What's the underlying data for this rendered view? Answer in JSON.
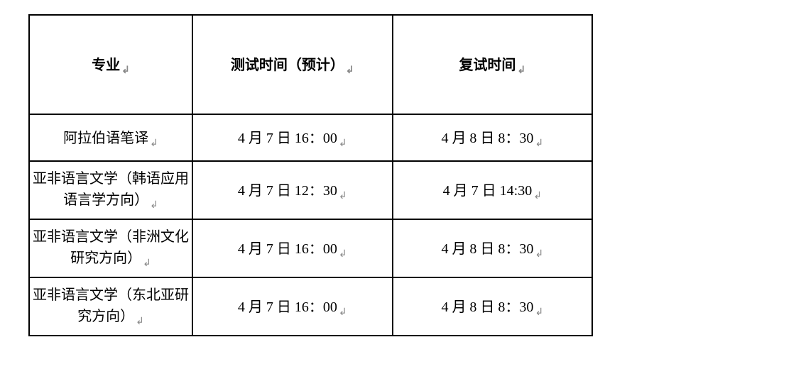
{
  "table": {
    "columns": [
      {
        "label": "专业",
        "width": "29%"
      },
      {
        "label": "测试时间（预计）",
        "width": "35.5%"
      },
      {
        "label": "复试时间",
        "width": "35.5%"
      }
    ],
    "rows": [
      {
        "major": "阿拉伯语笔译",
        "major_multiline": false,
        "test_time": "4 月 7 日 16：00",
        "retest_time": "4 月 8 日 8：30"
      },
      {
        "major": "亚非语言文学（韩语应用语言学方向）",
        "major_line1": "亚非语言文学（韩语应用",
        "major_line2": "语言学方向）",
        "major_multiline": true,
        "test_time": "4 月 7 日 12：30",
        "retest_time": "4 月 7 日 14:30"
      },
      {
        "major": "亚非语言文学（非洲文化研究方向）",
        "major_line1": "亚非语言文学（非洲文化",
        "major_line2": "研究方向）",
        "major_multiline": true,
        "test_time": "4 月 7 日 16：00",
        "retest_time": "4 月 8 日 8：30"
      },
      {
        "major": "亚非语言文学（东北亚研究方向）",
        "major_line1": "亚非语言文学（东北亚研",
        "major_line2": "究方向）",
        "major_multiline": true,
        "test_time": "4 月 7 日 16：00",
        "retest_time": "4 月 8 日 8：30"
      }
    ],
    "reveal_mark": "↲",
    "border_color": "#000000",
    "background_color": "#ffffff",
    "text_color": "#000000",
    "header_fontsize": 20,
    "cell_fontsize": 20,
    "header_row_height": 140,
    "data_row_height": 66,
    "tall_row_height": 82
  }
}
